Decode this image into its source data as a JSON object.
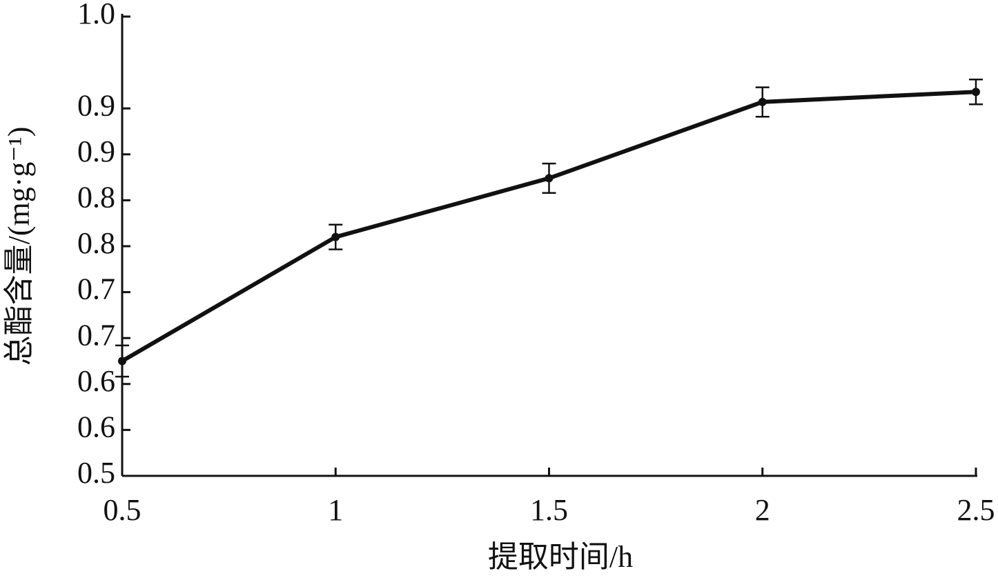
{
  "chart_data": {
    "type": "line",
    "x_label": "提取时间/h",
    "y_label": "总酯含量/(mg·g⁻¹)",
    "x": [
      0.5,
      1,
      1.5,
      2,
      2.5
    ],
    "series": [
      {
        "color": "#111111",
        "values": [
          0.625,
          0.76,
          0.824,
          0.907,
          0.918
        ],
        "errors": [
          0.017,
          0.0135,
          0.016,
          0.016,
          0.0135
        ]
      }
    ],
    "xlim": [
      0.5,
      2.5
    ],
    "xticks": [
      0.5,
      1,
      1.5,
      2,
      2.5
    ],
    "ylim": [
      0.5,
      1.0
    ],
    "yticks": [
      0.5,
      {
        "value": 0.55,
        "label": "0.6"
      },
      0.6,
      {
        "value": 0.65,
        "label": "0.7"
      },
      0.7,
      {
        "value": 0.75,
        "label": "0.8"
      },
      0.8,
      {
        "value": 0.85,
        "label": "0.9"
      },
      0.9,
      {
        "value": 1.0,
        "label": "1.0"
      }
    ],
    "grid": false
  }
}
